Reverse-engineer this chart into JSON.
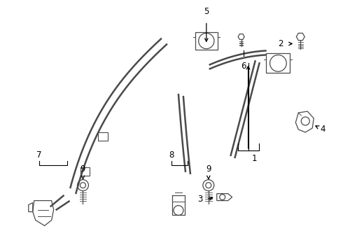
{
  "background_color": "#ffffff",
  "line_color": "#4a4a4a",
  "label_color": "#000000",
  "figsize": [
    4.9,
    3.6
  ],
  "dpi": 100,
  "belt_lw": 1.8,
  "thin_lw": 0.9,
  "label_fs": 8.5
}
